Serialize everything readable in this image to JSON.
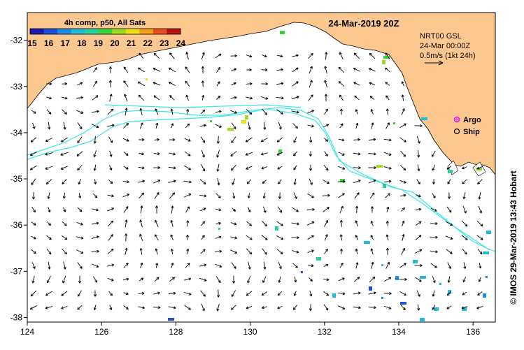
{
  "map": {
    "title": "24-Mar-2019 20Z",
    "colorbar_title": "4h comp, p50, All Sats",
    "colorbar_ticks": [
      "15",
      "16",
      "17",
      "18",
      "19",
      "20",
      "21",
      "22",
      "23",
      "24"
    ],
    "colorbar_colors": [
      "#1a1aa6",
      "#1f4fd8",
      "#1f8be0",
      "#22b8d6",
      "#2ccf9a",
      "#3bd13b",
      "#9ddc1f",
      "#f0e01a",
      "#f0a01a",
      "#e8501a",
      "#b81414"
    ],
    "x_ticks": [
      "124",
      "126",
      "128",
      "130",
      "132",
      "134",
      "136"
    ],
    "y_ticks": [
      "-32",
      "-33",
      "-34",
      "-35",
      "-36",
      "-37",
      "-38"
    ],
    "lon_range": [
      124,
      136.6
    ],
    "lat_range": [
      -38.1,
      -31.4
    ],
    "current_label": "NRT00 GSL",
    "current_time": "24-Mar 00:00Z",
    "current_scale": "0.5m/s (1kt 24h)",
    "legend": [
      {
        "label": "Argo",
        "color": "#e020e0"
      },
      {
        "label": "Ship",
        "color": "#000000"
      }
    ],
    "credit": "© IMOS 29-Mar-2019 13:43 Hobart",
    "land_color": "#fdc88f",
    "contour_color": "#3ee6e6",
    "arrow_color": "#000000"
  }
}
